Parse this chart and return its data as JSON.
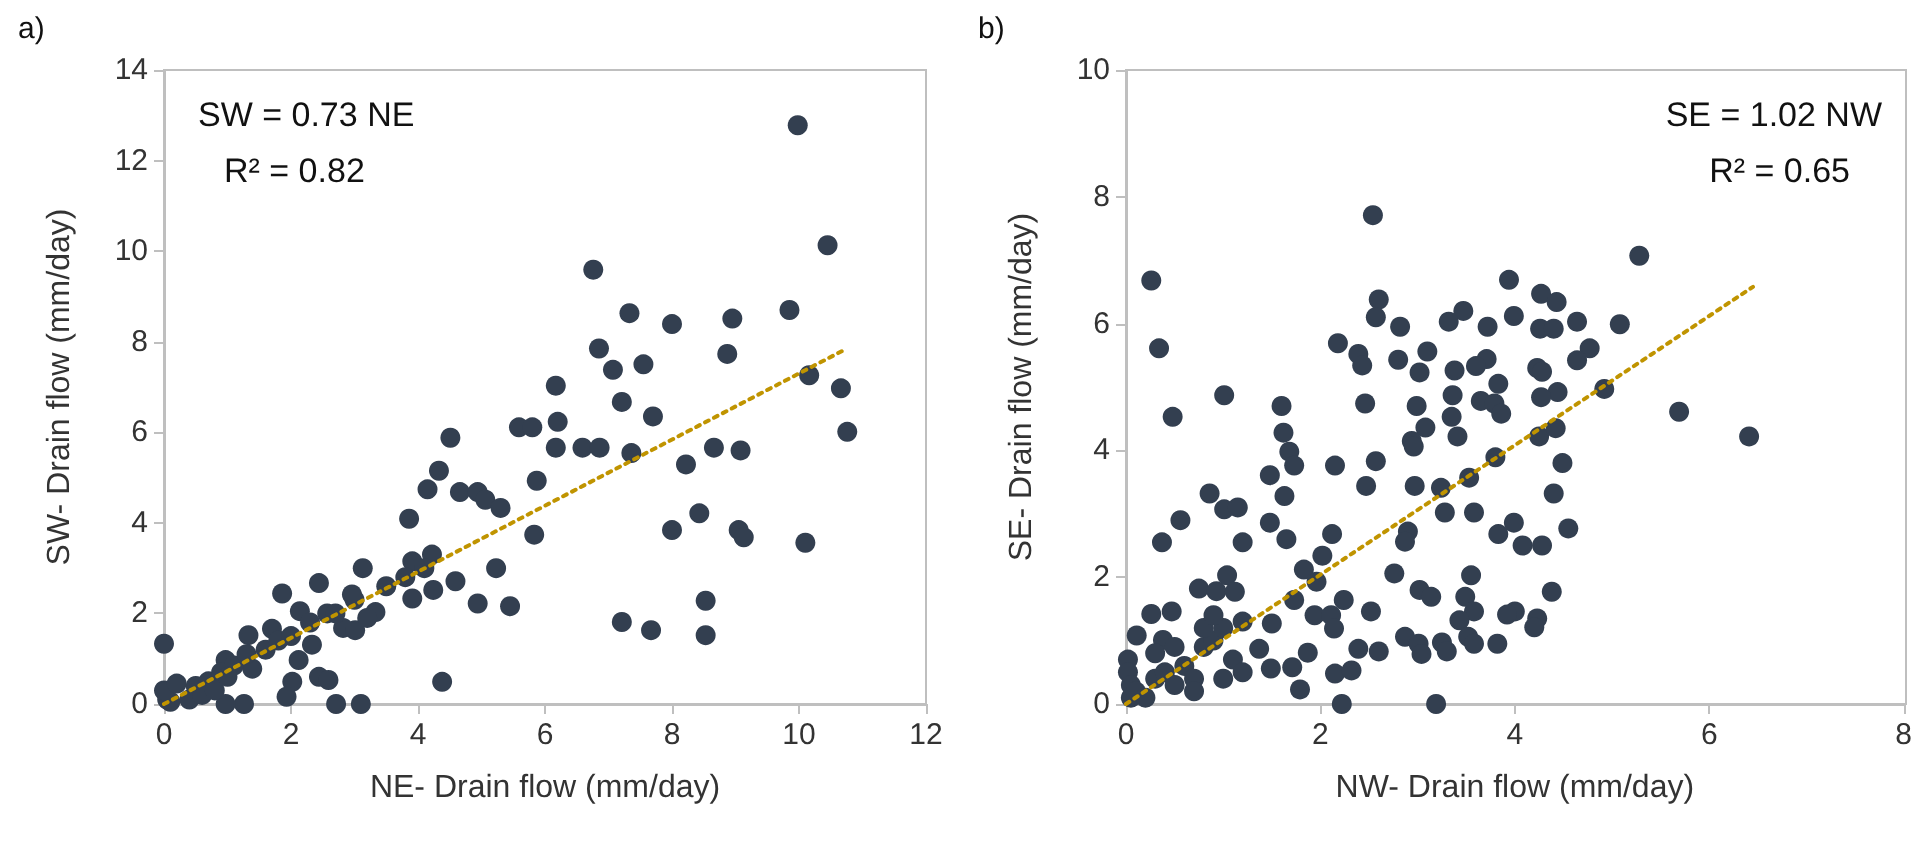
{
  "chart_data": [
    {
      "type": "scatter",
      "title": "a)",
      "xlabel": "NE- Drain flow (mm/day)",
      "ylabel": "SW- Drain flow (mm/day)",
      "annotations": [
        "SW = 0.73 NE",
        "R² = 0.82"
      ],
      "xlim": [
        0,
        12
      ],
      "xticks": [
        0,
        2,
        4,
        6,
        8,
        10,
        12
      ],
      "ylim": [
        0,
        14
      ],
      "yticks": [
        0,
        2,
        4,
        6,
        8,
        10,
        12,
        14
      ],
      "grid": false,
      "marker": "circle",
      "series": [
        {
          "color": "#333f50",
          "x": [
            9.98,
            10.45,
            6.76,
            7.33,
            8.0,
            8.95,
            9.85,
            6.85,
            8.87,
            7.07,
            7.55,
            10.16,
            10.66,
            6.17,
            7.21,
            7.7,
            6.2,
            5.59,
            5.8,
            10.76,
            6.17,
            6.59,
            6.86,
            7.36,
            8.66,
            9.08,
            8.22,
            4.51,
            4.33,
            4.15,
            5.87,
            4.66,
            4.94,
            5.06,
            5.3,
            3.86,
            5.83,
            8.43,
            8.0,
            9.05,
            9.13,
            10.1,
            4.22,
            3.91,
            3.13,
            5.23,
            4.59,
            4.24,
            2.44,
            1.86,
            3.91,
            4.94,
            5.45,
            2.96,
            3.33,
            2.14,
            2.57,
            8.53,
            7.21,
            7.67,
            8.53,
            2.82,
            3.01,
            1.7,
            1.33,
            2.33,
            2.12,
            1.39,
            0.97,
            0.0,
            2.44,
            2.59,
            2.02,
            4.38,
            1.93,
            2.71,
            3.1,
            1.26,
            0.97,
            0.05,
            0.1,
            0.5,
            0.7,
            0.9,
            1.1,
            1.3,
            1.6,
            1.8,
            2.0,
            2.3,
            2.7,
            3.0,
            3.5,
            3.8,
            4.1,
            0.0,
            0.4,
            0.6,
            0.2,
            0.8,
            1.0,
            3.2
          ],
          "values": [
            12.78,
            10.13,
            9.59,
            8.63,
            8.39,
            8.51,
            8.7,
            7.85,
            7.73,
            7.38,
            7.5,
            7.26,
            6.97,
            7.03,
            6.67,
            6.35,
            6.23,
            6.11,
            6.11,
            6.01,
            5.66,
            5.66,
            5.66,
            5.54,
            5.66,
            5.6,
            5.29,
            5.88,
            5.15,
            4.74,
            4.93,
            4.68,
            4.68,
            4.51,
            4.33,
            4.09,
            3.74,
            4.21,
            3.84,
            3.84,
            3.68,
            3.56,
            3.3,
            3.15,
            3.0,
            3.0,
            2.71,
            2.52,
            2.67,
            2.44,
            2.33,
            2.22,
            2.16,
            2.42,
            2.03,
            2.05,
            2.0,
            2.28,
            1.81,
            1.63,
            1.52,
            1.68,
            1.63,
            1.66,
            1.52,
            1.31,
            0.97,
            0.78,
            0.97,
            1.33,
            0.6,
            0.53,
            0.49,
            0.49,
            0.16,
            0.0,
            0.0,
            0.0,
            0.0,
            0.1,
            0.05,
            0.4,
            0.5,
            0.7,
            0.85,
            1.1,
            1.2,
            1.4,
            1.5,
            1.8,
            2.0,
            2.3,
            2.6,
            2.8,
            3.0,
            0.3,
            0.1,
            0.2,
            0.45,
            0.3,
            0.6,
            1.9
          ]
        },
        {
          "type": "line",
          "color": "#c09400",
          "line_style": "dotted",
          "marker": "none",
          "x": [
            0,
            10.7
          ],
          "values": [
            0,
            7.81
          ]
        }
      ]
    },
    {
      "type": "scatter",
      "title": "b)",
      "xlabel": "NW- Drain flow (mm/day)",
      "ylabel": "SE- Drain flow (mm/day)",
      "annotations": [
        "SE = 1.02 NW",
        "R² = 0.65"
      ],
      "xlim": [
        0,
        8
      ],
      "xticks": [
        0,
        2,
        4,
        6,
        8
      ],
      "ylim": [
        0,
        10
      ],
      "yticks": [
        0,
        2,
        4,
        6,
        8,
        10
      ],
      "grid": false,
      "marker": "circle",
      "series": [
        {
          "color": "#333f50",
          "x": [
            2.54,
            0.26,
            5.28,
            3.94,
            2.6,
            4.27,
            4.43,
            2.57,
            3.47,
            3.32,
            3.72,
            3.99,
            2.82,
            4.64,
            5.08,
            4.26,
            4.4,
            0.34,
            2.18,
            3.1,
            2.39,
            2.43,
            2.8,
            4.77,
            4.64,
            3.71,
            3.6,
            3.38,
            3.02,
            4.23,
            4.28,
            3.83,
            4.92,
            1.01,
            3.36,
            4.44,
            4.27,
            3.65,
            3.79,
            3.86,
            2.46,
            1.6,
            2.99,
            0.48,
            3.35,
            5.69,
            6.41,
            3.08,
            1.62,
            3.41,
            4.25,
            4.42,
            2.94,
            2.96,
            1.68,
            2.57,
            3.8,
            1.73,
            2.15,
            4.49,
            1.48,
            2.47,
            3.24,
            3.53,
            2.97,
            0.86,
            1.63,
            4.4,
            1.01,
            1.15,
            3.28,
            3.58,
            0.56,
            1.48,
            3.99,
            4.55,
            2.9,
            2.12,
            3.83,
            0.37,
            1.2,
            1.65,
            4.08,
            4.28,
            2.87,
            2.02,
            2.76,
            1.83,
            1.96,
            1.04,
            3.55,
            0.75,
            0.93,
            1.12,
            4.38,
            3.02,
            3.14,
            3.49,
            1.73,
            2.24,
            3.58,
            2.52,
            0.26,
            0.47,
            4.0,
            3.92,
            4.23,
            1.94,
            2.11,
            3.43,
            1.5,
            2.14,
            4.2,
            0.11,
            2.87,
            0.38,
            3.52,
            3.25,
            3.58,
            3.82,
            1.37,
            2.39,
            3.01,
            3.04,
            3.3,
            2.6,
            1.87,
            1.71,
            1.49,
            2.15,
            2.32,
            1.79,
            2.22,
            3.19,
            0.02,
            0.02,
            0.05,
            0.05,
            0.1,
            0.2,
            0.3,
            0.4,
            0.5,
            0.6,
            0.7,
            0.8,
            0.9,
            1.0,
            1.1,
            1.2,
            0.8,
            0.9,
            1.2,
            0.7,
            1.0,
            0.3,
            0.5
          ],
          "values": [
            7.71,
            6.68,
            7.07,
            6.69,
            6.38,
            6.47,
            6.34,
            6.1,
            6.2,
            6.03,
            5.95,
            6.12,
            5.95,
            6.03,
            5.99,
            5.92,
            5.92,
            5.61,
            5.69,
            5.56,
            5.52,
            5.34,
            5.43,
            5.61,
            5.42,
            5.44,
            5.33,
            5.26,
            5.23,
            5.3,
            5.24,
            5.05,
            4.97,
            4.87,
            4.87,
            4.92,
            4.84,
            4.78,
            4.74,
            4.58,
            4.74,
            4.7,
            4.7,
            4.53,
            4.53,
            4.61,
            4.22,
            4.36,
            4.28,
            4.22,
            4.22,
            4.35,
            4.15,
            4.06,
            3.98,
            3.83,
            3.89,
            3.76,
            3.76,
            3.8,
            3.61,
            3.44,
            3.41,
            3.57,
            3.44,
            3.32,
            3.28,
            3.32,
            3.07,
            3.1,
            3.02,
            3.02,
            2.9,
            2.86,
            2.86,
            2.77,
            2.72,
            2.68,
            2.68,
            2.55,
            2.55,
            2.6,
            2.5,
            2.5,
            2.56,
            2.34,
            2.06,
            2.12,
            1.93,
            2.03,
            2.03,
            1.82,
            1.78,
            1.77,
            1.77,
            1.8,
            1.69,
            1.69,
            1.64,
            1.64,
            1.46,
            1.46,
            1.42,
            1.46,
            1.46,
            1.41,
            1.35,
            1.4,
            1.4,
            1.32,
            1.27,
            1.19,
            1.21,
            1.08,
            1.06,
            1.01,
            1.06,
            0.97,
            0.95,
            0.95,
            0.87,
            0.87,
            0.95,
            0.79,
            0.83,
            0.83,
            0.81,
            0.58,
            0.56,
            0.48,
            0.53,
            0.23,
            0.0,
            0.0,
            0.7,
            0.5,
            0.3,
            0.1,
            0.2,
            0.1,
            0.4,
            0.5,
            0.3,
            0.6,
            0.4,
            0.9,
            1.0,
            1.2,
            0.7,
            0.5,
            1.2,
            1.4,
            1.3,
            0.2,
            0.4,
            0.8,
            0.9
          ]
        },
        {
          "type": "line",
          "color": "#c09400",
          "line_style": "dotted",
          "marker": "none",
          "x": [
            0,
            6.45
          ],
          "values": [
            0,
            6.58
          ]
        }
      ]
    }
  ]
}
